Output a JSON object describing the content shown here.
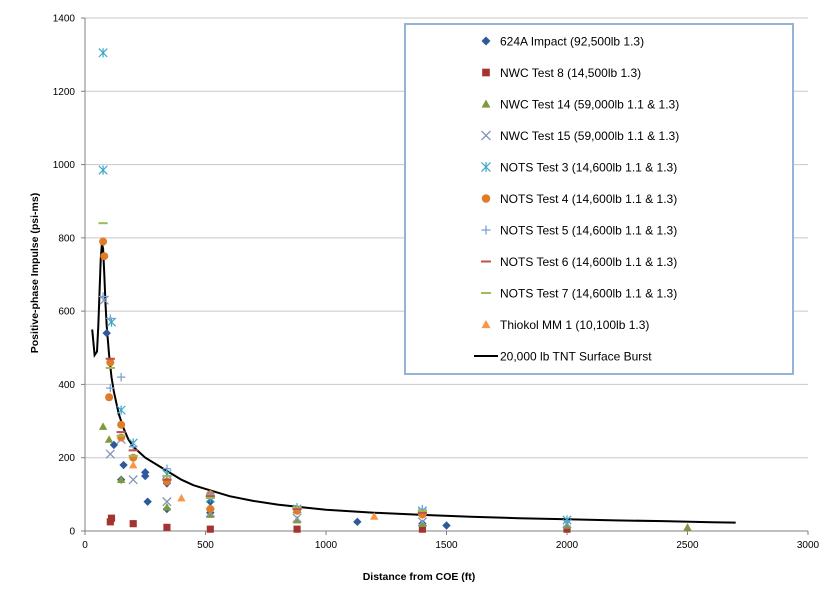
{
  "chart_data": {
    "type": "scatter",
    "title": "",
    "xlabel": "Distance from COE (ft)",
    "ylabel": "Positive-phase Impulse (psi-ms)",
    "xlim": [
      0,
      3000
    ],
    "ylim": [
      0,
      1400
    ],
    "xticks": [
      0,
      500,
      1000,
      1500,
      2000,
      2500,
      3000
    ],
    "yticks": [
      0,
      200,
      400,
      600,
      800,
      1000,
      1200,
      1400
    ],
    "grid": "horizontal",
    "legend_position": "top-right",
    "series": [
      {
        "name": "624A Impact (92,500lb 1.3)",
        "marker": "diamond",
        "color": "#2E5A9C",
        "x": [
          90,
          120,
          150,
          160,
          250,
          250,
          260,
          340,
          340,
          520,
          520,
          1130,
          1400,
          1500
        ],
        "y": [
          540,
          235,
          140,
          180,
          150,
          160,
          80,
          60,
          130,
          50,
          80,
          25,
          20,
          15
        ]
      },
      {
        "name": "NWC Test 8 (14,500lb 1.3)",
        "marker": "square",
        "color": "#A5332F",
        "x": [
          105,
          110,
          200,
          340,
          520,
          880,
          1400,
          2000
        ],
        "y": [
          25,
          35,
          20,
          10,
          5,
          5,
          5,
          5
        ]
      },
      {
        "name": "NWC Test 14 (59,000lb 1.1 & 1.3)",
        "marker": "triangle",
        "color": "#7E9A3B",
        "x": [
          75,
          100,
          150,
          340,
          520,
          880,
          1400,
          2000,
          2500
        ],
        "y": [
          285,
          250,
          140,
          65,
          45,
          30,
          20,
          15,
          10
        ]
      },
      {
        "name": "NWC Test 15 (59,000lb 1.1 & 1.3)",
        "marker": "x",
        "color": "#8597B8",
        "x": [
          80,
          105,
          150,
          200,
          340,
          520,
          880,
          1400,
          2000
        ],
        "y": [
          630,
          210,
          250,
          140,
          80,
          50,
          35,
          25,
          20
        ]
      },
      {
        "name": "NOTS Test 3 (14,600lb 1.1 & 1.3)",
        "marker": "asterisk",
        "color": "#39A7C9",
        "x": [
          75,
          75,
          110,
          150,
          200,
          340,
          520,
          880,
          1400,
          2000
        ],
        "y": [
          1305,
          985,
          570,
          330,
          240,
          155,
          90,
          60,
          55,
          30
        ]
      },
      {
        "name": "NOTS Test 4 (14,600lb 1.1 & 1.3)",
        "marker": "circle",
        "color": "#E07B27",
        "x": [
          75,
          80,
          100,
          105,
          150,
          150,
          200,
          340,
          520,
          520,
          880,
          1400
        ],
        "y": [
          790,
          750,
          365,
          460,
          290,
          255,
          200,
          135,
          100,
          60,
          55,
          45
        ]
      },
      {
        "name": "NOTS Test 5 (14,600lb 1.1 & 1.3)",
        "marker": "plus",
        "color": "#7AA3D4",
        "x": [
          75,
          105,
          105,
          150,
          200,
          340,
          520,
          880,
          1400
        ],
        "y": [
          640,
          580,
          390,
          420,
          230,
          170,
          100,
          65,
          60
        ]
      },
      {
        "name": "NOTS Test 6 (14,600lb 1.1 & 1.3)",
        "marker": "dash",
        "color": "#C0504D",
        "x": [
          105,
          150,
          200,
          340,
          520,
          880,
          1400
        ],
        "y": [
          470,
          270,
          220,
          140,
          95,
          60,
          50
        ]
      },
      {
        "name": "NOTS Test 7 (14,600lb 1.1 & 1.3)",
        "marker": "dash",
        "color": "#9BBB59",
        "x": [
          75,
          105,
          150,
          200,
          340,
          520,
          880,
          1400
        ],
        "y": [
          840,
          445,
          260,
          205,
          150,
          90,
          65,
          55
        ]
      },
      {
        "name": "Thiokol MM 1 (10,100lb 1.3)",
        "marker": "triangle",
        "color": "#F79646",
        "x": [
          200,
          400,
          1200
        ],
        "y": [
          180,
          90,
          40
        ]
      },
      {
        "name": "20,000 lb TNT Surface Burst",
        "marker": "line",
        "color": "#000000",
        "x": [
          30,
          40,
          50,
          55,
          60,
          65,
          70,
          75,
          80,
          85,
          90,
          95,
          100,
          110,
          120,
          140,
          160,
          180,
          200,
          250,
          300,
          350,
          400,
          450,
          500,
          600,
          700,
          800,
          900,
          1000,
          1200,
          1400,
          1600,
          1800,
          2000,
          2200,
          2400,
          2600,
          2700
        ],
        "y": [
          550,
          480,
          490,
          560,
          650,
          740,
          785,
          770,
          700,
          620,
          560,
          520,
          480,
          420,
          380,
          320,
          280,
          250,
          230,
          200,
          180,
          160,
          140,
          125,
          115,
          95,
          82,
          72,
          65,
          58,
          50,
          44,
          39,
          35,
          32,
          29,
          27,
          24,
          23
        ]
      }
    ]
  }
}
